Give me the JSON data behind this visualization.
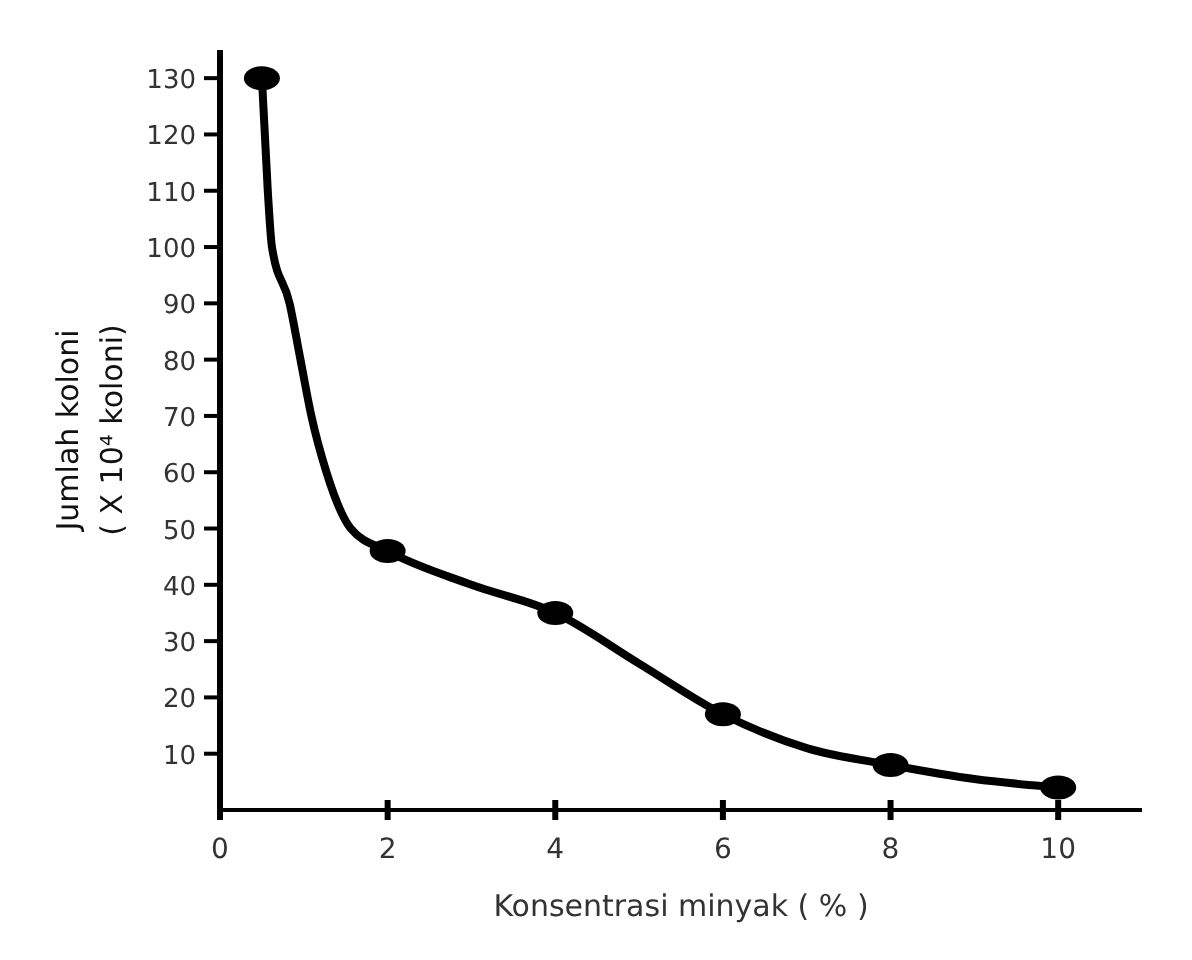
{
  "chart_data": {
    "type": "line",
    "xlabel": "Konsentrasi minyak ( % )",
    "ylabel": "Jumlah koloni\n( X 10⁴ koloni)",
    "xlim": [
      0,
      11
    ],
    "xticks": [
      0,
      2,
      4,
      6,
      8,
      10
    ],
    "ylim": [
      0,
      135
    ],
    "yticks": [
      10,
      20,
      30,
      40,
      50,
      60,
      70,
      80,
      90,
      100,
      110,
      120,
      130
    ],
    "grid": false,
    "line_style": "solid",
    "series": [
      {
        "color": "#000000",
        "marker": "none",
        "x": [
          0.5,
          0.57,
          0.62,
          0.83,
          0.96,
          1.09,
          1.27,
          1.56,
          2,
          3,
          4,
          5,
          6,
          7,
          8,
          9,
          10
        ],
        "values": [
          130,
          110,
          100,
          90,
          80,
          70,
          60,
          50,
          46,
          40,
          35,
          26,
          17,
          11,
          8,
          5.5,
          4
        ]
      },
      {
        "type": "scatter",
        "color": "#000000",
        "marker": "circle",
        "x": [
          0.5,
          2,
          4,
          6,
          8,
          10
        ],
        "values": [
          130,
          46,
          35,
          17,
          8,
          4
        ]
      }
    ]
  }
}
